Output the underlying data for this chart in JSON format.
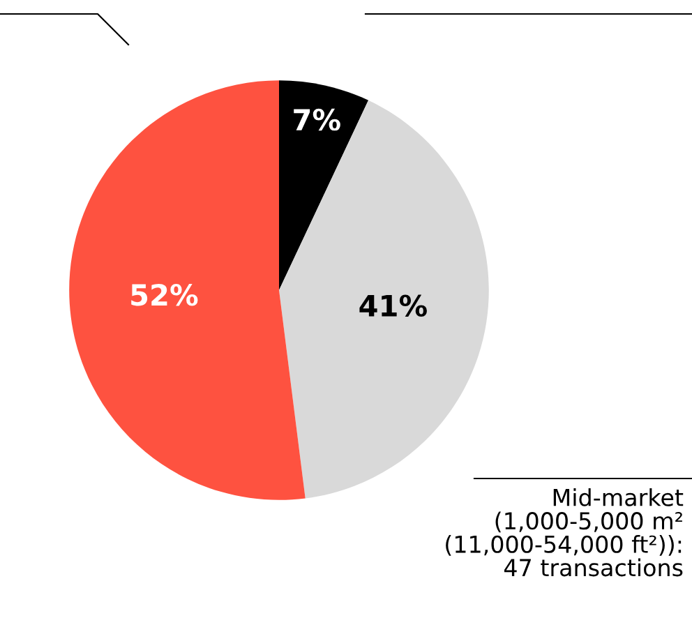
{
  "chart_data": {
    "type": "pie",
    "categories": [
      null,
      "Mid-market\n(1,000-5,000 m²\n(11,000-54,000 ft²)):\n47 transactions",
      null
    ],
    "values": [
      7,
      41,
      52
    ],
    "colors": [
      "#000000",
      "#d9d9d9",
      "#fe5240"
    ],
    "value_labels": [
      "7%",
      "41%",
      "52%"
    ],
    "legend": false
  }
}
